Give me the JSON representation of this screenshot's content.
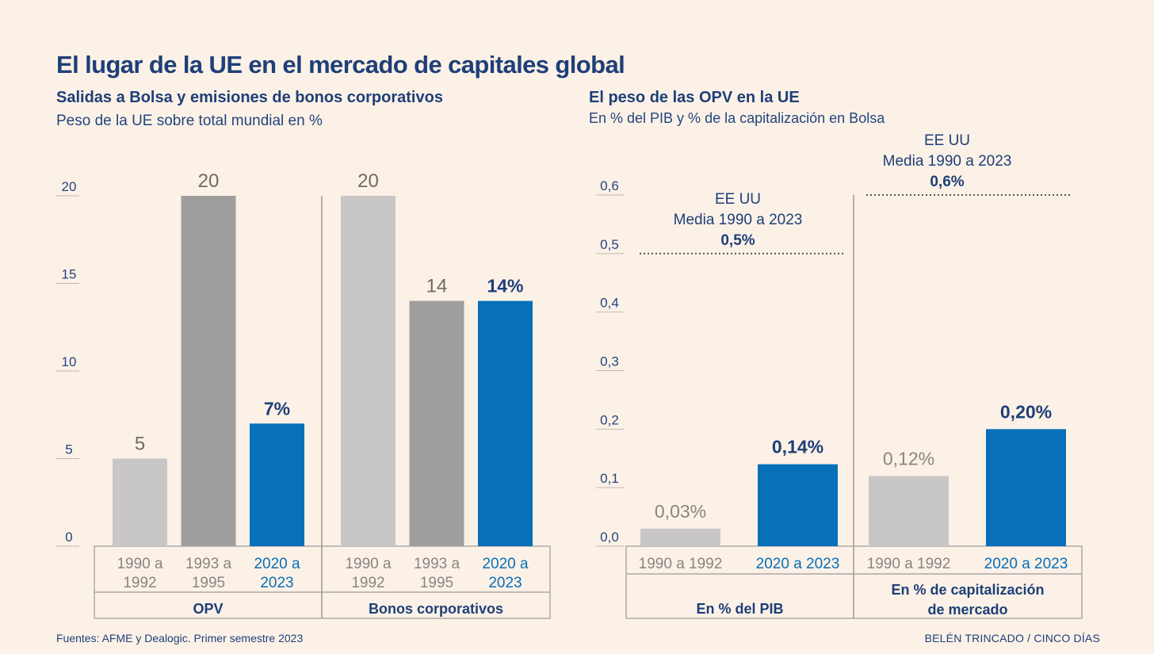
{
  "title": "El lugar de la UE en el mercado de capitales global",
  "source": "Fuentes: AFME y Dealogic. Primer semestre 2023",
  "credit": "BELÉN TRINCADO / CINCO DÍAS",
  "colors": {
    "light": "#c8c6c6",
    "mid": "#9e9e9e",
    "accent": "#0670b8",
    "text": "#1e3f78",
    "axis": "#23457e",
    "muted": "#8a8480"
  },
  "chart_data": [
    {
      "type": "bar",
      "title": "Salidas a Bolsa y emisiones de bonos corporativos",
      "subtitle": "Peso de la UE sobre total mundial en %",
      "ylim": [
        0,
        20
      ],
      "yticks": [
        "0",
        "5",
        "10",
        "15",
        "20"
      ],
      "grid": false,
      "groups": [
        {
          "name": "OPV",
          "bars": [
            {
              "label_lines": [
                "1990 a",
                "1992"
              ],
              "value": 5,
              "value_label": "5",
              "color": "#c8c6c6",
              "highlight": false
            },
            {
              "label_lines": [
                "1993 a",
                "1995"
              ],
              "value": 20,
              "value_label": "20",
              "color": "#9e9e9e",
              "highlight": false
            },
            {
              "label_lines": [
                "2020 a",
                "2023"
              ],
              "value": 7,
              "value_label": "7%",
              "color": "#0670b8",
              "highlight": true
            }
          ]
        },
        {
          "name": "Bonos corporativos",
          "bars": [
            {
              "label_lines": [
                "1990 a",
                "1992"
              ],
              "value": 20,
              "value_label": "20",
              "color": "#c8c6c6",
              "highlight": false
            },
            {
              "label_lines": [
                "1993 a",
                "1995"
              ],
              "value": 14,
              "value_label": "14",
              "color": "#9e9e9e",
              "highlight": false
            },
            {
              "label_lines": [
                "2020 a",
                "2023"
              ],
              "value": 14,
              "value_label": "14%",
              "color": "#0670b8",
              "highlight": true
            }
          ]
        }
      ]
    },
    {
      "type": "bar",
      "title": "El peso de las OPV en la UE",
      "subtitle": "En % del PIB y % de la capitalización en Bolsa",
      "ylim": [
        0,
        0.6
      ],
      "yticks": [
        "0,0",
        "0,1",
        "0,2",
        "0,3",
        "0,4",
        "0,5",
        "0,6"
      ],
      "grid": false,
      "groups": [
        {
          "name_lines": [
            "En % del PIB"
          ],
          "reference": {
            "value": 0.5,
            "label_lines": [
              "EE UU",
              "Media 1990 a 2023"
            ],
            "value_label": "0,5%"
          },
          "bars": [
            {
              "label_lines": [
                "1990 a 1992"
              ],
              "value": 0.03,
              "value_label": "0,03%",
              "color": "#c8c6c6",
              "highlight": false
            },
            {
              "label_lines": [
                "2020 a 2023"
              ],
              "value": 0.14,
              "value_label": "0,14%",
              "color": "#0670b8",
              "highlight": true
            }
          ]
        },
        {
          "name_lines": [
            "En % de capitalización",
            "de mercado"
          ],
          "reference": {
            "value": 0.6,
            "label_lines": [
              "EE UU",
              "Media 1990 a 2023"
            ],
            "value_label": "0,6%"
          },
          "bars": [
            {
              "label_lines": [
                "1990 a 1992"
              ],
              "value": 0.12,
              "value_label": "0,12%",
              "color": "#c8c6c6",
              "highlight": false
            },
            {
              "label_lines": [
                "2020 a 2023"
              ],
              "value": 0.2,
              "value_label": "0,20%",
              "color": "#0670b8",
              "highlight": true
            }
          ]
        }
      ]
    }
  ]
}
